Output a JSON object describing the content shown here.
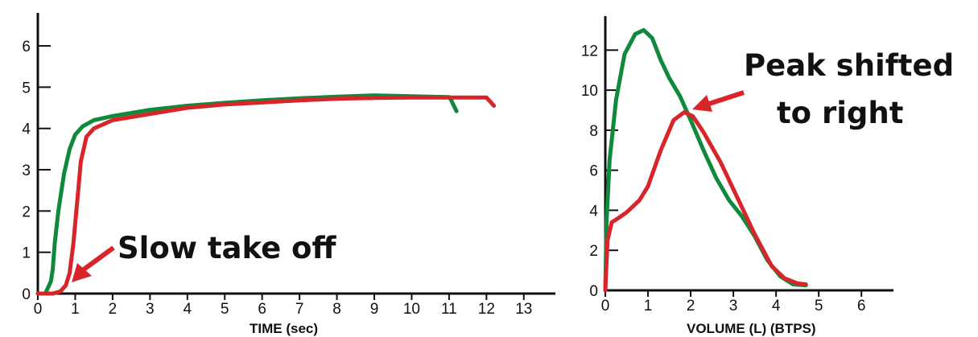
{
  "chart_data": [
    {
      "type": "line",
      "xlabel": "TIME (sec)",
      "ylabel": "",
      "xlim": [
        0,
        13.5
      ],
      "ylim": [
        0,
        6.8
      ],
      "xticks": [
        "0",
        "1",
        "2",
        "3",
        "4",
        "5",
        "6",
        "7",
        "8",
        "9",
        "10",
        "11",
        "12",
        "13"
      ],
      "yticks": [
        "0",
        "1",
        "2",
        "3",
        "4",
        "5",
        "6"
      ],
      "series": [
        {
          "color": "#0f8a3c",
          "x": [
            0,
            0.2,
            0.35,
            0.4,
            0.45,
            0.55,
            0.7,
            0.85,
            1.0,
            1.2,
            1.5,
            2,
            3,
            4,
            5,
            6,
            7,
            8,
            9,
            10,
            11,
            11.05,
            11.1,
            11.2
          ],
          "y": [
            0,
            0,
            0.3,
            0.6,
            1.2,
            2.0,
            2.9,
            3.5,
            3.85,
            4.05,
            4.2,
            4.3,
            4.45,
            4.55,
            4.62,
            4.68,
            4.73,
            4.77,
            4.8,
            4.78,
            4.76,
            4.7,
            4.6,
            4.42
          ]
        },
        {
          "color": "#d8252a",
          "x": [
            0,
            0.4,
            0.6,
            0.75,
            0.85,
            0.95,
            1.05,
            1.15,
            1.3,
            1.5,
            2,
            3,
            4,
            5,
            6,
            7,
            8,
            9,
            10,
            11,
            11.5,
            12,
            12.1,
            12.2
          ],
          "y": [
            0,
            0,
            0.05,
            0.2,
            0.5,
            1.2,
            2.2,
            3.2,
            3.8,
            4.0,
            4.2,
            4.35,
            4.5,
            4.58,
            4.63,
            4.68,
            4.72,
            4.74,
            4.75,
            4.75,
            4.75,
            4.75,
            4.65,
            4.55
          ]
        }
      ]
    },
    {
      "type": "line",
      "xlabel": "VOLUME (L) (BTPS)",
      "ylabel": "",
      "xlim": [
        0,
        6.6
      ],
      "ylim": [
        0,
        13.7
      ],
      "xticks": [
        "0",
        "1",
        "2",
        "3",
        "4",
        "5",
        "6"
      ],
      "yticks": [
        "0",
        "2",
        "4",
        "6",
        "8",
        "10",
        "12"
      ],
      "series": [
        {
          "color": "#0f8a3c",
          "x": [
            0,
            0.03,
            0.1,
            0.25,
            0.45,
            0.7,
            0.9,
            1.1,
            1.3,
            1.5,
            1.75,
            2.0,
            2.3,
            2.6,
            2.9,
            3.2,
            3.5,
            3.8,
            4.1,
            4.4,
            4.7
          ],
          "y": [
            0,
            3.5,
            6.5,
            9.5,
            11.8,
            12.8,
            13.0,
            12.6,
            11.5,
            10.6,
            9.7,
            8.5,
            7.0,
            5.6,
            4.5,
            3.7,
            2.7,
            1.5,
            0.7,
            0.3,
            0.25
          ]
        },
        {
          "color": "#d8252a",
          "x": [
            0,
            0.05,
            0.15,
            0.3,
            0.5,
            0.8,
            1.0,
            1.3,
            1.6,
            1.85,
            2.05,
            2.3,
            2.7,
            3.1,
            3.5,
            3.9,
            4.2,
            4.5,
            4.7
          ],
          "y": [
            0,
            2.5,
            3.4,
            3.6,
            3.9,
            4.5,
            5.2,
            7.0,
            8.5,
            8.9,
            8.7,
            7.9,
            6.4,
            4.6,
            2.8,
            1.2,
            0.6,
            0.35,
            0.3
          ]
        }
      ]
    }
  ],
  "annotations": {
    "slow_take_off": "Slow take off",
    "peak_line1": "Peak shifted",
    "peak_line2": "to right"
  },
  "colors": {
    "normal": "#0f8a3c",
    "obstructed": "#d8252a",
    "arrow": "#d8252a",
    "axis": "#111111"
  }
}
